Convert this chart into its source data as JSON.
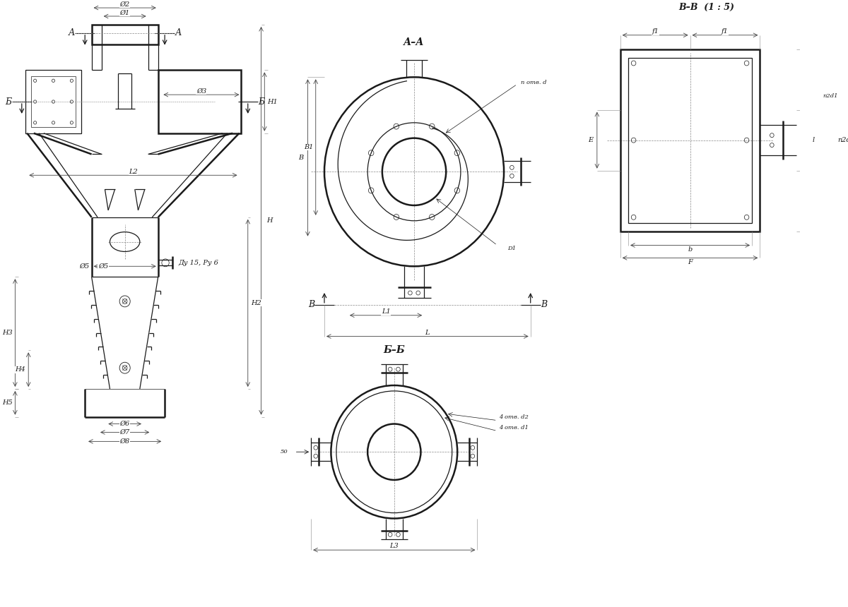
{
  "bg_color": "#ffffff",
  "lc": "#1a1a1a",
  "tc": "#888888",
  "lw": 0.9,
  "lw2": 1.8,
  "fs": 7,
  "fs_sec": 10,
  "section_AA": "А–А",
  "section_BB": "Б–Б",
  "section_VV": "В–В  (1 : 5)",
  "label_A": "А",
  "label_B": "Б",
  "label_V": "В",
  "dim_D1": "Ø1",
  "dim_D2": "Ø2",
  "dim_D3": "Ø3",
  "dim_D5": "Ø5",
  "dim_D6": "Ø6",
  "dim_D7": "Ø7",
  "dim_D8": "Ø8",
  "dim_H": "H",
  "dim_H1": "H1",
  "dim_H2": "H2",
  "dim_H3": "H3",
  "dim_H4": "H4",
  "dim_H5": "H5",
  "dim_L": "L",
  "dim_L1": "L1",
  "dim_L2": "L2",
  "dim_L3": "L3",
  "dim_B": "B",
  "dim_B1": "B1",
  "dim_E": "E",
  "dim_b": "b",
  "dim_F": "F",
  "dim_f1": "f1",
  "dim_l": "l",
  "dim_n2d1": "n2d1",
  "dim_notv": "n отв. d",
  "dim_4d2": "4 отв. d2",
  "dim_4d1": "4 отв. d1",
  "dim_Dy": "Ду 15, Ру 6",
  "dim_50": "50",
  "dim_D1AA": "D1"
}
